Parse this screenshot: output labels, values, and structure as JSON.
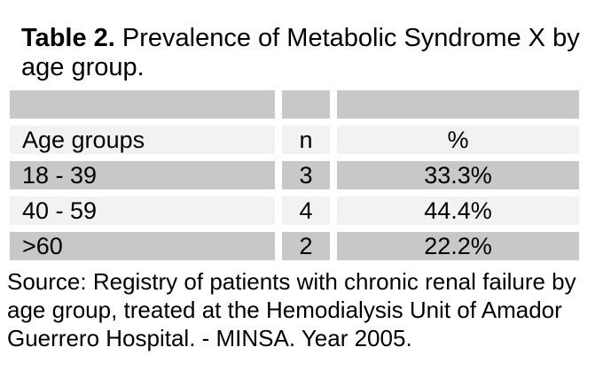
{
  "caption": {
    "bold": "Table 2.",
    "text": " Prevalence of Metabolic Syndrome X by\nage group."
  },
  "table": {
    "columns": [
      "Age groups",
      "n",
      "%"
    ],
    "rows": [
      [
        "18 - 39",
        "3",
        "33.3%"
      ],
      [
        "40 - 59",
        "4",
        "44.4%"
      ],
      [
        ">60",
        "2",
        "22.2%"
      ]
    ]
  },
  "source": {
    "text": "Source: Registry of patients with chronic renal failure by\nage group, treated at the Hemodialysis Unit of Amador\nGuerrero Hospital. - MINSA. Year 2005."
  },
  "colors": {
    "row_gray": "#c8c8c8",
    "row_light": "#f2f2f2",
    "text_color": "#000000",
    "page_bg": "#ffffff"
  },
  "chart_data": {
    "type": "table",
    "title": "Table 2. Prevalence of Metabolic Syndrome X by age group.",
    "columns": [
      "Age groups",
      "n",
      "%"
    ],
    "rows": [
      [
        "18 - 39",
        3,
        "33.3%"
      ],
      [
        "40 - 59",
        4,
        "44.4%"
      ],
      [
        ">60",
        2,
        "22.2%"
      ]
    ],
    "source_note": "Source: Registry of patients with chronic renal failure by age group, treated at the Hemodialysis Unit of Amador Guerrero Hospital. - MINSA. Year 2005."
  }
}
